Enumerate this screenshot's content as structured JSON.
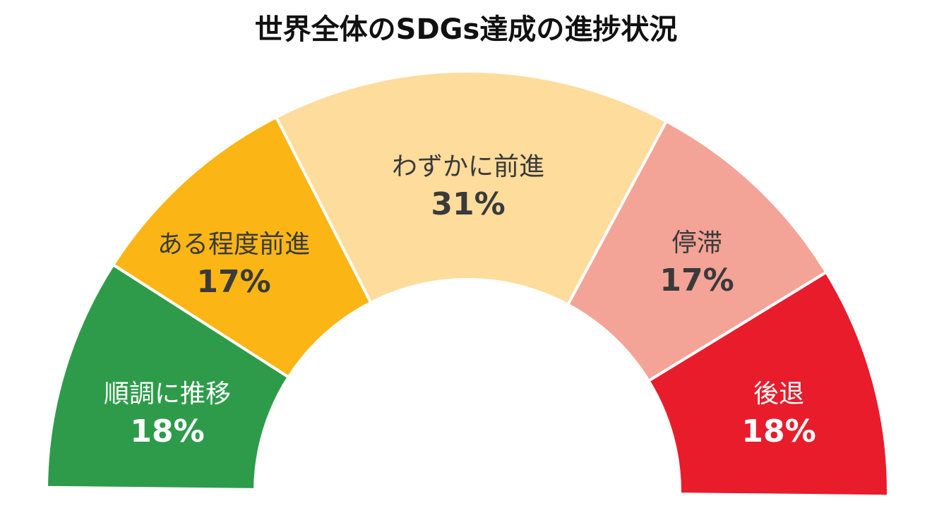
{
  "title": "世界全体のSDGs達成の進捗状況",
  "chart_data": {
    "type": "pie",
    "subtype": "half-donut",
    "title": "世界全体のSDGs達成の進捗状況",
    "categories": [
      "順調に推移",
      "ある程度前進",
      "わずかに前進",
      "停滞",
      "後退"
    ],
    "values": [
      18,
      17,
      31,
      17,
      18
    ],
    "unit": "%",
    "colors": [
      "#2E9B4A",
      "#FBB615",
      "#FDDC9C",
      "#F4A397",
      "#E91C2C"
    ],
    "legend": "none (labels inside segments)"
  },
  "segments": [
    {
      "name": "順調に推移",
      "pct": "18%",
      "value": 18,
      "color": "#2E9B4A",
      "text_color": "#FFFFFF"
    },
    {
      "name": "ある程度前進",
      "pct": "17%",
      "value": 17,
      "color": "#FBB615",
      "text_color": "#3A3A3A"
    },
    {
      "name": "わずかに前進",
      "pct": "31%",
      "value": 31,
      "color": "#FDDC9C",
      "text_color": "#3A3A3A"
    },
    {
      "name": "停滞",
      "pct": "17%",
      "value": 17,
      "color": "#F4A397",
      "text_color": "#3A3A3A"
    },
    {
      "name": "後退",
      "pct": "18%",
      "value": 18,
      "color": "#E91C2C",
      "text_color": "#FFFFFF"
    }
  ]
}
